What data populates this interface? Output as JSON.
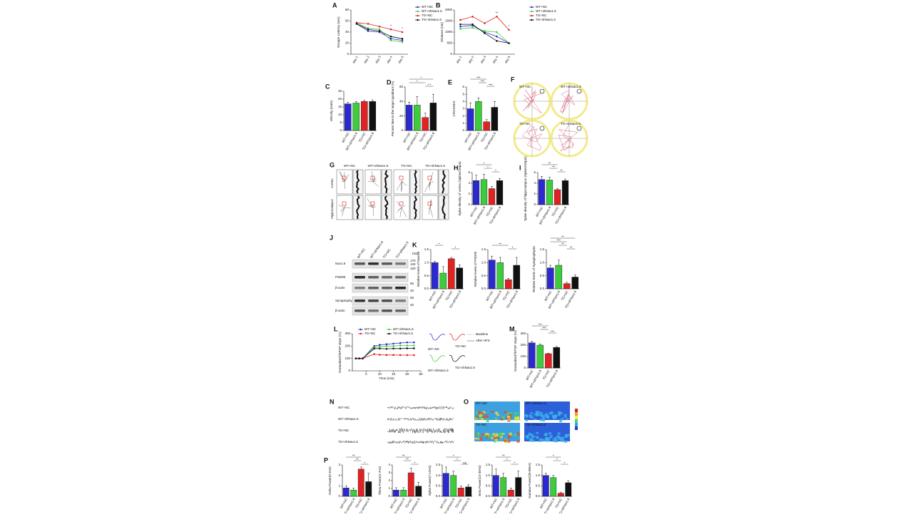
{
  "chart_data": [
    {
      "type": "line",
      "panel": "A",
      "ylabel": "Escape Latency (sec)",
      "categories": [
        "day 1",
        "day 2",
        "day 3",
        "day 4",
        "day 5"
      ],
      "ylim": [
        0,
        80
      ],
      "yticks": [
        0,
        20,
        40,
        60,
        80
      ],
      "series": [
        {
          "name": "WT+NC",
          "color": "#2a2ad0",
          "values": [
            55,
            42,
            40,
            28,
            25
          ]
        },
        {
          "name": "WT+shNav1.6",
          "color": "#3ccc3c",
          "values": [
            57,
            47,
            45,
            25,
            22
          ]
        },
        {
          "name": "TG+NC",
          "color": "#e02222",
          "values": [
            57,
            55,
            50,
            45,
            40
          ]
        },
        {
          "name": "TG+shNav1.6",
          "color": "#111111",
          "values": [
            55,
            45,
            42,
            32,
            28
          ]
        }
      ],
      "annotations": [
        {
          "category": 3,
          "text": "*"
        },
        {
          "category": 4,
          "text": "*"
        }
      ]
    },
    {
      "type": "line",
      "panel": "B",
      "ylabel": "Distance (cm)",
      "categories": [
        "day 1",
        "day 2",
        "day 3",
        "day 4",
        "day 5"
      ],
      "ylim": [
        0,
        2000
      ],
      "yticks": [
        0,
        500,
        1000,
        1500,
        2000
      ],
      "series": [
        {
          "name": "WT+NC",
          "color": "#2a2ad0",
          "values": [
            1250,
            1300,
            1000,
            800,
            500
          ]
        },
        {
          "name": "WT+shNav1.6",
          "color": "#3ccc3c",
          "values": [
            1150,
            1200,
            1050,
            1000,
            500
          ]
        },
        {
          "name": "TG+NC",
          "color": "#e02222",
          "values": [
            1550,
            1700,
            1400,
            1700,
            1100
          ]
        },
        {
          "name": "TG+shNav1.6",
          "color": "#111111",
          "values": [
            1350,
            1350,
            950,
            600,
            500
          ]
        }
      ],
      "annotations": [
        {
          "category": 3,
          "text": "**"
        },
        {
          "category": 4,
          "text": "*"
        }
      ]
    },
    {
      "type": "bar",
      "panel": "C",
      "ylabel": "Velocity (cm/s)",
      "categories": [
        "WT+NC",
        "WT+shNav1.6",
        "TG+NC",
        "TG+shNav1.6"
      ],
      "colors": [
        "#2a2ad0",
        "#3ccc3c",
        "#e02222",
        "#111111"
      ],
      "values": [
        17,
        17.5,
        18.5,
        18.5
      ],
      "errors": [
        1,
        1,
        0.8,
        1
      ],
      "ylim": [
        0,
        25
      ],
      "yticks": [
        0,
        5,
        10,
        15,
        20,
        25
      ],
      "comparisons": []
    },
    {
      "type": "bar",
      "panel": "D",
      "ylabel": "Percent time in the target quadrant (%)",
      "categories": [
        "WT+NC",
        "WT+shNav1.6",
        "TG+NC",
        "TG+shNav1.6"
      ],
      "colors": [
        "#2a2ad0",
        "#3ccc3c",
        "#e02222",
        "#111111"
      ],
      "values": [
        35,
        35,
        18,
        38
      ],
      "errors": [
        4,
        12,
        6,
        12
      ],
      "ylim": [
        0,
        60
      ],
      "yticks": [
        0,
        20,
        40,
        60
      ],
      "comparisons": [
        {
          "pair": [
            0,
            3
          ],
          "text": "*"
        },
        {
          "pair": [
            0,
            2
          ],
          "text": "*"
        },
        {
          "pair": [
            2,
            3
          ],
          "text": "* *"
        }
      ]
    },
    {
      "type": "bar",
      "panel": "E",
      "ylabel": "CROSSES",
      "categories": [
        "WT+NC",
        "WT+shNav1.6",
        "TG+NC",
        "TG+shNav1.6"
      ],
      "colors": [
        "#2a2ad0",
        "#3ccc3c",
        "#e02222",
        "#111111"
      ],
      "values": [
        3,
        4,
        1.2,
        3.2
      ],
      "errors": [
        0.8,
        0.5,
        0.3,
        0.8
      ],
      "ylim": [
        0,
        6
      ],
      "yticks": [
        0,
        1,
        2,
        3,
        4,
        5,
        6
      ],
      "comparisons": [
        {
          "pair": [
            0,
            2
          ],
          "text": "***"
        },
        {
          "pair": [
            1,
            2
          ],
          "text": "***"
        },
        {
          "pair": [
            2,
            3
          ],
          "text": "***"
        }
      ]
    },
    {
      "type": "bar",
      "panel": "H",
      "ylabel": "Spine density of cortex (Spines/10μm)",
      "categories": [
        "WT+NC",
        "WT+shNav1.6",
        "TG+NC",
        "TG+shNav1.6"
      ],
      "colors": [
        "#2a2ad0",
        "#3ccc3c",
        "#e02222",
        "#111111"
      ],
      "values": [
        4.5,
        4.7,
        3,
        4.5
      ],
      "errors": [
        1,
        1,
        0.4,
        0.4
      ],
      "ylim": [
        0,
        6
      ],
      "yticks": [
        0,
        2,
        4,
        6
      ],
      "comparisons": [
        {
          "pair": [
            0,
            2
          ],
          "text": "*"
        },
        {
          "pair": [
            1,
            2
          ],
          "text": "*"
        },
        {
          "pair": [
            2,
            3
          ],
          "text": "*"
        }
      ]
    },
    {
      "type": "bar",
      "panel": "I",
      "ylabel": "Spine density of hippocampus (Spines/10μm)",
      "categories": [
        "WT+NC",
        "WT+shNav1.6",
        "TG+NC",
        "TG+shNav1.6"
      ],
      "colors": [
        "#2a2ad0",
        "#3ccc3c",
        "#e02222",
        "#111111"
      ],
      "values": [
        4.7,
        4.6,
        2.8,
        4.5
      ],
      "errors": [
        0.6,
        0.5,
        0.2,
        0.3
      ],
      "ylim": [
        0,
        6
      ],
      "yticks": [
        0,
        2,
        4,
        6
      ],
      "comparisons": [
        {
          "pair": [
            0,
            2
          ],
          "text": "**"
        },
        {
          "pair": [
            1,
            2
          ],
          "text": "**"
        },
        {
          "pair": [
            2,
            3
          ],
          "text": "**"
        }
      ]
    },
    {
      "type": "bar",
      "panel": "K",
      "ylabel": "Relative levels of Nav1.6",
      "categories": [
        "WT+NC",
        "WT+shNav1.6",
        "TG+NC",
        "TG+shNav1.6"
      ],
      "colors": [
        "#2a2ad0",
        "#3ccc3c",
        "#e02222",
        "#111111"
      ],
      "values": [
        1,
        0.6,
        1.15,
        0.8
      ],
      "errors": [
        0.05,
        0.25,
        0.05,
        0.12
      ],
      "ylim": [
        0,
        1.5
      ],
      "yticks": [
        {
          "value": 0,
          "label": "0.0"
        },
        0.5,
        {
          "value": 1,
          "label": "1.0"
        },
        1.5
      ],
      "comparisons": [
        {
          "pair": [
            0,
            1
          ],
          "text": "*"
        },
        {
          "pair": [
            2,
            3
          ],
          "text": "*"
        }
      ]
    },
    {
      "type": "bar",
      "ylabel": "Relative levels of PSD95",
      "categories": [
        "WT+NC",
        "WT+shNav1.6",
        "TG+NC",
        "TG+shNav1.6"
      ],
      "colors": [
        "#2a2ad0",
        "#3ccc3c",
        "#e02222",
        "#111111"
      ],
      "values": [
        1.1,
        1,
        0.35,
        0.9
      ],
      "errors": [
        0.15,
        0.2,
        0.05,
        0.3
      ],
      "ylim": [
        0,
        1.5
      ],
      "yticks": [
        {
          "value": 0,
          "label": "0.0"
        },
        0.5,
        {
          "value": 1,
          "label": "1.0"
        },
        1.5
      ],
      "comparisons": [
        {
          "pair": [
            0,
            2
          ],
          "text": "**"
        },
        {
          "pair": [
            2,
            3
          ],
          "text": "*"
        }
      ]
    },
    {
      "type": "bar",
      "ylabel": "Relative levels of Synaptophysin",
      "categories": [
        "WT+NC",
        "WT+shNav1.6",
        "TG+NC",
        "TG+shNav1.6"
      ],
      "colors": [
        "#2a2ad0",
        "#3ccc3c",
        "#e02222",
        "#111111"
      ],
      "values": [
        0.8,
        0.9,
        0.2,
        0.45
      ],
      "errors": [
        0.1,
        0.2,
        0.05,
        0.08
      ],
      "ylim": [
        0,
        1.5
      ],
      "yticks": [
        {
          "value": 0,
          "label": "0.0"
        },
        0.5,
        {
          "value": 1,
          "label": "1.0"
        },
        1.5
      ],
      "comparisons": [
        {
          "pair": [
            0,
            3
          ],
          "text": "**"
        },
        {
          "pair": [
            0,
            2
          ],
          "text": "***"
        },
        {
          "pair": [
            1,
            2
          ],
          "text": "**"
        },
        {
          "pair": [
            2,
            3
          ],
          "text": "**"
        }
      ]
    },
    {
      "type": "line",
      "panel": "L",
      "ylabel": "Normalized fEPSP slope (%)",
      "xlabel": "Time (min)",
      "x": [
        -15,
        -10,
        -5,
        12,
        20,
        30,
        40,
        50,
        60,
        70
      ],
      "xlim": [
        -20,
        80
      ],
      "xticks": [
        0,
        20,
        40,
        60,
        80
      ],
      "ylim": [
        0,
        300
      ],
      "yticks": [
        0,
        100,
        200,
        300
      ],
      "series": [
        {
          "name": "WT+NC",
          "color": "#2a2ad0",
          "values": [
            100,
            100,
            100,
            200,
            210,
            215,
            220,
            225,
            230,
            230
          ]
        },
        {
          "name": "WT+shNav1.6",
          "color": "#3ccc3c",
          "values": [
            100,
            100,
            100,
            190,
            195,
            200,
            200,
            205,
            205,
            205
          ]
        },
        {
          "name": "TG+NC",
          "color": "#e02222",
          "values": [
            100,
            100,
            100,
            135,
            130,
            128,
            128,
            127,
            127,
            127
          ]
        },
        {
          "name": "TG+shNav1.6",
          "color": "#111111",
          "values": [
            100,
            100,
            100,
            180,
            180,
            178,
            180,
            180,
            182,
            182
          ]
        }
      ],
      "annotations": []
    },
    {
      "type": "bar",
      "panel": "M",
      "ylabel": "Normalized fEPSP slope (%)",
      "categories": [
        "WT+NC",
        "WT+shNav1.6",
        "TG+NC",
        "TG+shNav1.6"
      ],
      "colors": [
        "#2a2ad0",
        "#3ccc3c",
        "#e02222",
        "#111111"
      ],
      "values": [
        220,
        200,
        125,
        180
      ],
      "errors": [
        15,
        10,
        5,
        8
      ],
      "ylim": [
        0,
        300
      ],
      "yticks": [
        0,
        100,
        200,
        300
      ],
      "comparisons": [
        {
          "pair": [
            0,
            2
          ],
          "text": "***"
        },
        {
          "pair": [
            1,
            2
          ],
          "text": "***"
        },
        {
          "pair": [
            2,
            3
          ],
          "text": "***"
        }
      ]
    },
    {
      "type": "bar",
      "panel": "P",
      "ylabel": "Delta Power(0-4Hz)",
      "categories": [
        "WT+NC",
        "WT+shNav1.6",
        "TG+NC",
        "TG+shNav1.6"
      ],
      "colors": [
        "#2a2ad0",
        "#3ccc3c",
        "#e02222",
        "#111111"
      ],
      "values": [
        0.8,
        0.6,
        2.6,
        1.4
      ],
      "errors": [
        0.2,
        0.2,
        0.2,
        0.8
      ],
      "ylim": [
        0,
        3
      ],
      "yticks": [
        0,
        1,
        2,
        3
      ],
      "comparisons": [
        {
          "pair": [
            0,
            2
          ],
          "text": "**"
        },
        {
          "pair": [
            1,
            2
          ],
          "text": "**"
        },
        {
          "pair": [
            2,
            3
          ],
          "text": "*"
        }
      ]
    },
    {
      "type": "bar",
      "ylabel": "Theta Power(4-7Hz)",
      "categories": [
        "WT+NC",
        "WT+shNav1.6",
        "TG+NC",
        "TG+shNav1.6"
      ],
      "colors": [
        "#2a2ad0",
        "#3ccc3c",
        "#e02222",
        "#111111"
      ],
      "values": [
        0.8,
        0.8,
        3,
        1.3
      ],
      "errors": [
        0.3,
        0.3,
        0.6,
        0.5
      ],
      "ylim": [
        0,
        4
      ],
      "yticks": [
        0,
        1,
        2,
        3,
        4
      ],
      "comparisons": [
        {
          "pair": [
            0,
            2
          ],
          "text": "**"
        },
        {
          "pair": [
            1,
            2
          ],
          "text": "**"
        },
        {
          "pair": [
            2,
            3
          ],
          "text": "*"
        }
      ]
    },
    {
      "type": "bar",
      "ylabel": "Alpha Power(7-13Hz)",
      "categories": [
        "WT+NC",
        "WT+shNav1.6",
        "TG+NC",
        "TG+shNav1.6"
      ],
      "colors": [
        "#2a2ad0",
        "#3ccc3c",
        "#e02222",
        "#111111"
      ],
      "values": [
        1.1,
        1,
        0.4,
        0.45
      ],
      "errors": [
        0.3,
        0.2,
        0.1,
        0.1
      ],
      "ylim": [
        0,
        1.5
      ],
      "yticks": [
        {
          "value": 0,
          "label": "0.0"
        },
        0.5,
        {
          "value": 1,
          "label": "1.0"
        },
        1.5
      ],
      "comparisons": [
        {
          "pair": [
            0,
            2
          ],
          "text": "*"
        },
        {
          "pair": [
            1,
            2
          ],
          "text": "*"
        },
        {
          "pair": [
            2,
            3
          ],
          "text": "ns"
        }
      ]
    },
    {
      "type": "bar",
      "ylabel": "Beta Power(13-30Hz)",
      "categories": [
        "WT+NC",
        "WT+shNav1.6",
        "TG+NC",
        "TG+shNav1.6"
      ],
      "colors": [
        "#2a2ad0",
        "#3ccc3c",
        "#e02222",
        "#111111"
      ],
      "values": [
        1,
        0.9,
        0.3,
        0.9
      ],
      "errors": [
        0.3,
        0.2,
        0.1,
        0.3
      ],
      "ylim": [
        0,
        1.5
      ],
      "yticks": [
        {
          "value": 0,
          "label": "0.0"
        },
        0.5,
        {
          "value": 1,
          "label": "1.0"
        },
        1.5
      ],
      "comparisons": [
        {
          "pair": [
            0,
            2
          ],
          "text": "**"
        },
        {
          "pair": [
            1,
            2
          ],
          "text": "*"
        },
        {
          "pair": [
            2,
            3
          ],
          "text": "*"
        }
      ]
    },
    {
      "type": "bar",
      "ylabel": "Gamma Power(30-80Hz)",
      "categories": [
        "WT+NC",
        "WT+shNav1.6",
        "TG+NC",
        "TG+shNav1.6"
      ],
      "colors": [
        "#2a2ad0",
        "#3ccc3c",
        "#e02222",
        "#111111"
      ],
      "values": [
        1,
        0.9,
        0.15,
        0.65
      ],
      "errors": [
        0.1,
        0.1,
        0.05,
        0.1
      ],
      "ylim": [
        0,
        1.5
      ],
      "yticks": [
        {
          "value": 0,
          "label": "0.0"
        },
        0.5,
        {
          "value": 1,
          "label": "1.0"
        },
        1.5
      ],
      "comparisons": [
        {
          "pair": [
            0,
            2
          ],
          "text": "*"
        },
        {
          "pair": [
            1,
            2
          ],
          "text": "*"
        },
        {
          "pair": [
            2,
            3
          ],
          "text": "*"
        }
      ]
    }
  ],
  "figures": {
    "F": {
      "panel": "F",
      "labels": [
        "WT+NC",
        "WT+shNav1.6",
        "TG+NC",
        "TG+shNav1.6"
      ]
    },
    "G": {
      "panel": "G",
      "columns": [
        "WT+NC",
        "WT+shNav1.6",
        "TG+NC",
        "TG+shNav1.6"
      ],
      "rows": [
        "Cortex",
        "Hippocampus"
      ]
    },
    "J": {
      "panel": "J",
      "columns": [
        "WT+NC",
        "WT+shNav1.6",
        "TG+NC",
        "TG+shNav1.6"
      ],
      "unit": "KDa",
      "rows": [
        "Nav1.6",
        "PSD95",
        "β-actin",
        "Synaptophysin",
        "β-actin"
      ],
      "markers": [
        "170",
        "130",
        "100",
        "55",
        "40",
        "55",
        "40"
      ]
    },
    "Linset": {
      "legend": [
        "Baseline",
        "After HFS"
      ],
      "labels": [
        "WT+NC",
        "TG+NC",
        "WT+shNav1.6",
        "TG+shNav1.6"
      ]
    },
    "N": {
      "panel": "N",
      "rows": [
        "WT+NC",
        "WT+shNav1.6",
        "TG+NC",
        "TG+shNav1.6"
      ]
    },
    "O": {
      "panel": "O",
      "labels": [
        "WT+NC",
        "WT+shNav1.6",
        "TG+NC",
        "TG+shNav1.6"
      ]
    }
  }
}
